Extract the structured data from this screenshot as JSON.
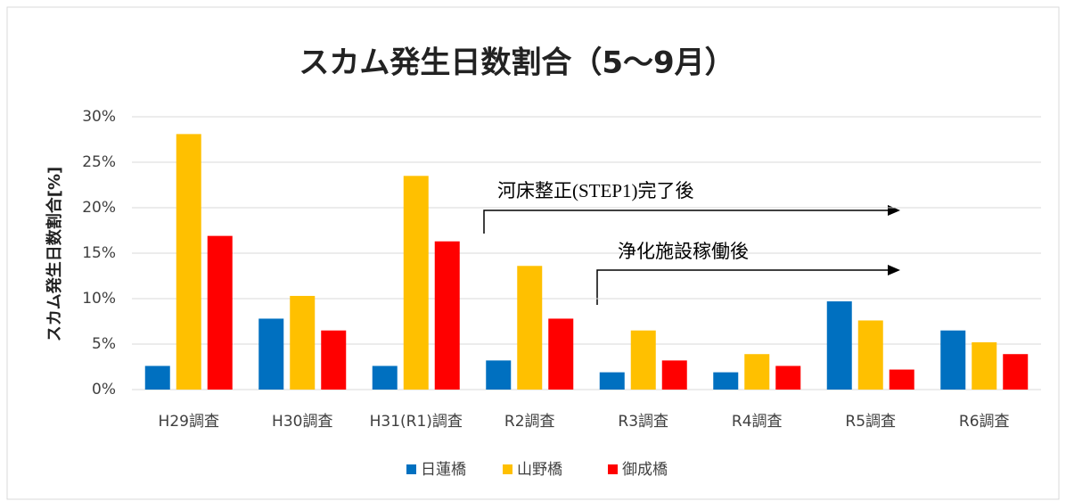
{
  "chart_data": {
    "type": "bar",
    "title": "スカム発生日数割合（5～9月）",
    "y_label": "スカム発生日数割合[%]",
    "categories": [
      "H29調査",
      "H30調査",
      "H31(R1)調査",
      "R2調査",
      "R3調査",
      "R4調査",
      "R5調査",
      "R6調査"
    ],
    "series": [
      {
        "name": "日蓮橋",
        "color": "#0070c0",
        "values": [
          2.6,
          7.8,
          2.6,
          3.2,
          1.9,
          1.9,
          9.7,
          6.5
        ]
      },
      {
        "name": "山野橋",
        "color": "#ffc000",
        "values": [
          28.1,
          10.3,
          23.5,
          13.6,
          6.5,
          3.9,
          7.6,
          5.2
        ]
      },
      {
        "name": "御成橋",
        "color": "#ff0000",
        "values": [
          16.9,
          6.5,
          16.3,
          7.8,
          3.2,
          2.6,
          2.2,
          3.9
        ]
      }
    ],
    "ylim": [
      0,
      30
    ],
    "yticks": [
      {
        "value": 0,
        "label": "0%"
      },
      {
        "value": 5,
        "label": "5%"
      },
      {
        "value": 10,
        "label": "10%"
      },
      {
        "value": 15,
        "label": "15%"
      },
      {
        "value": 20,
        "label": "20%"
      },
      {
        "value": 25,
        "label": "25%"
      },
      {
        "value": 30,
        "label": "30%"
      }
    ],
    "grid": true,
    "legend": "bottom",
    "annotations": [
      "河床整正(STEP1)完了後",
      "浄化施設稼働後"
    ]
  }
}
